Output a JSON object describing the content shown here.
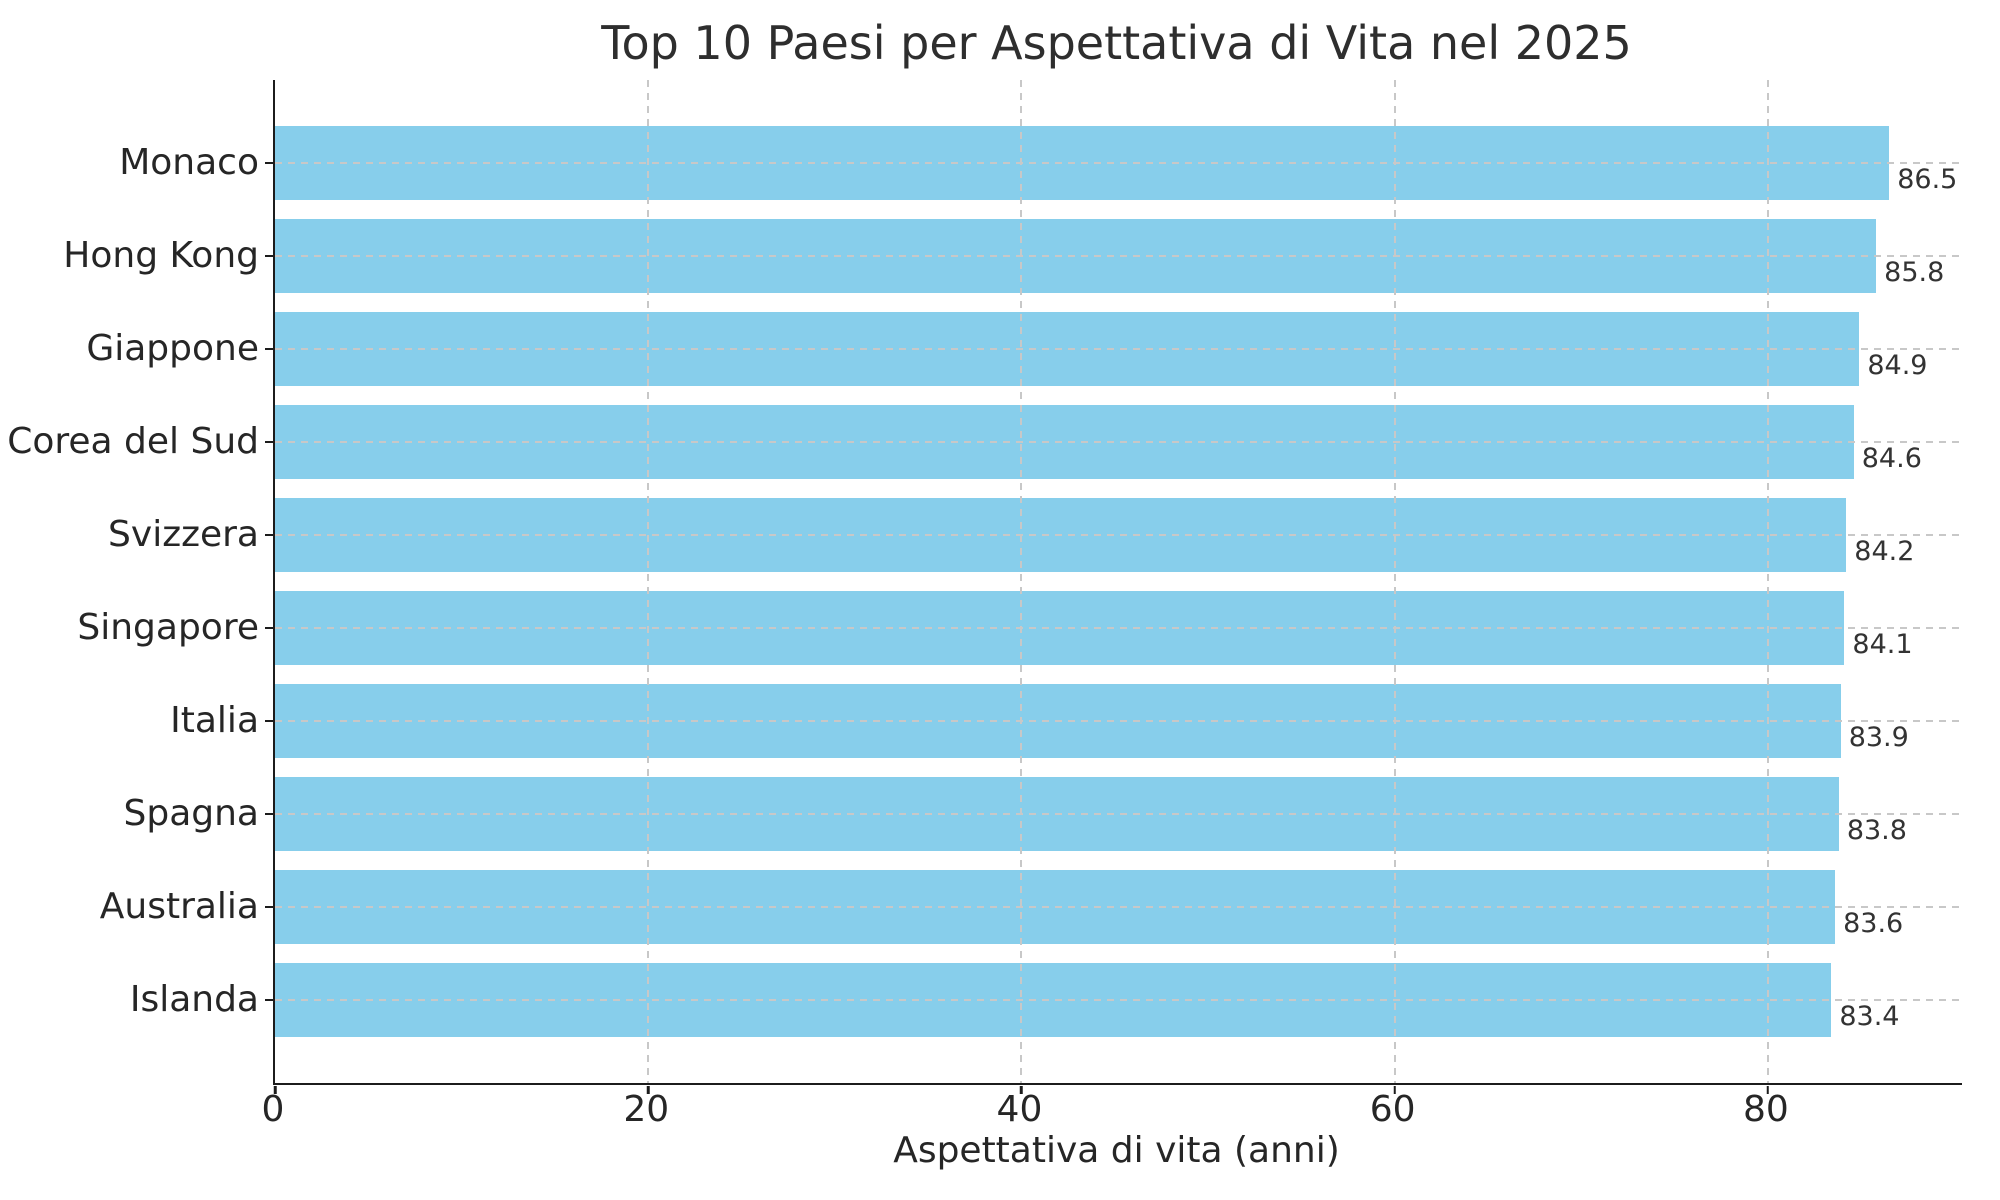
{
  "chart_data": {
    "type": "bar",
    "orientation": "horizontal",
    "title": "Top 10 Paesi per Aspettativa di Vita nel 2025",
    "xlabel": "Aspettativa di vita (anni)",
    "categories": [
      "Monaco",
      "Hong Kong",
      "Giappone",
      "Corea del Sud",
      "Svizzera",
      "Singapore",
      "Italia",
      "Spagna",
      "Australia",
      "Islanda"
    ],
    "values": [
      86.5,
      85.8,
      84.9,
      84.6,
      84.2,
      84.1,
      83.9,
      83.8,
      83.6,
      83.4
    ],
    "value_labels": [
      "86.5",
      "85.8",
      "84.9",
      "84.6",
      "84.2",
      "84.1",
      "83.9",
      "83.8",
      "83.6",
      "83.4"
    ],
    "x_ticks": [
      0,
      20,
      40,
      60,
      80
    ],
    "xlim": [
      0,
      90.4
    ],
    "grid": {
      "style": "dashed",
      "axes": "both",
      "over_bars": true
    },
    "legend": "none",
    "colors": {
      "bar": "#87CEEB",
      "grid": "#c8c8c8",
      "spine": "#1c1c1c",
      "text": "#262626",
      "value_text": "#333333",
      "background": "#ffffff"
    }
  }
}
